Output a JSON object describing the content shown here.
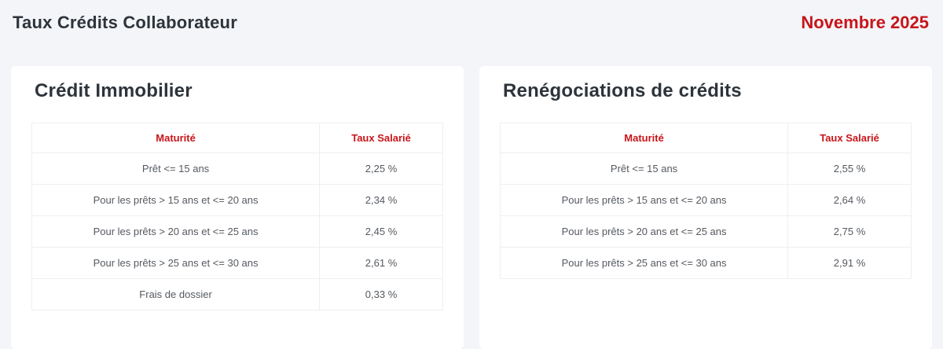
{
  "page": {
    "title": "Taux Crédits Collaborateur",
    "period": "Novembre 2025"
  },
  "colors": {
    "accent_red": "#c8151a",
    "title_dark": "#2e343b",
    "page_background": "#f3f5f8",
    "cell_text": "#555a60"
  },
  "cards": [
    {
      "title": "Crédit Immobilier",
      "columns": [
        "Maturité",
        "Taux Salarié"
      ],
      "rows": [
        [
          "Prêt <= 15 ans",
          "2,25 %"
        ],
        [
          "Pour les prêts > 15 ans et <= 20 ans",
          "2,34 %"
        ],
        [
          "Pour les prêts > 20 ans et <= 25 ans",
          "2,45 %"
        ],
        [
          "Pour les prêts > 25 ans et <= 30 ans",
          "2,61 %"
        ],
        [
          "Frais de dossier",
          "0,33 %"
        ]
      ]
    },
    {
      "title": "Renégociations de crédits",
      "columns": [
        "Maturité",
        "Taux Salarié"
      ],
      "rows": [
        [
          "Prêt <= 15 ans",
          "2,55 %"
        ],
        [
          "Pour les prêts > 15 ans et <= 20 ans",
          "2,64 %"
        ],
        [
          "Pour les prêts > 20 ans et <= 25 ans",
          "2,75 %"
        ],
        [
          "Pour les prêts > 25 ans et <= 30 ans",
          "2,91 %"
        ]
      ]
    }
  ]
}
